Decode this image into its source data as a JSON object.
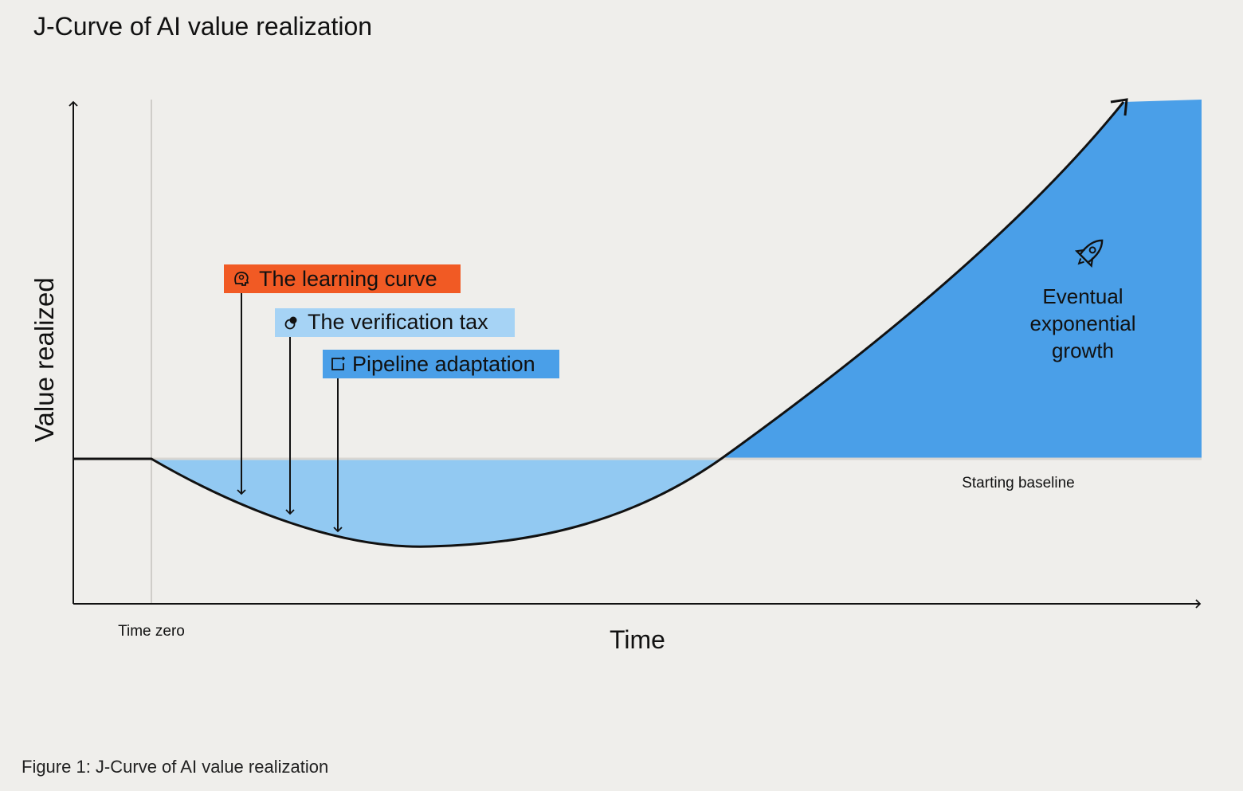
{
  "title": "J-Curve of AI value realization",
  "axes": {
    "y_label": "Value realized",
    "x_label": "Time",
    "time_zero": "Time zero",
    "baseline": "Starting baseline"
  },
  "tags": [
    {
      "label": "The learning curve",
      "icon": "brain-head-icon",
      "color": "#f15a24"
    },
    {
      "label": "The verification tax",
      "icon": "verification-icon",
      "color": "#a6d3f5"
    },
    {
      "label": "Pipeline adaptation",
      "icon": "pipeline-icon",
      "color": "#4a9fe8"
    }
  ],
  "growth": {
    "icon": "rocket-icon",
    "lines": [
      "Eventual",
      "exponential",
      "growth"
    ]
  },
  "caption": "Figure 1: J-Curve of AI value realization",
  "colors": {
    "dip_fill": "#92c9f2",
    "growth_fill": "#4a9fe8",
    "curve": "#111111",
    "baseline": "#d8d6d2",
    "background": "#efeeeb"
  }
}
